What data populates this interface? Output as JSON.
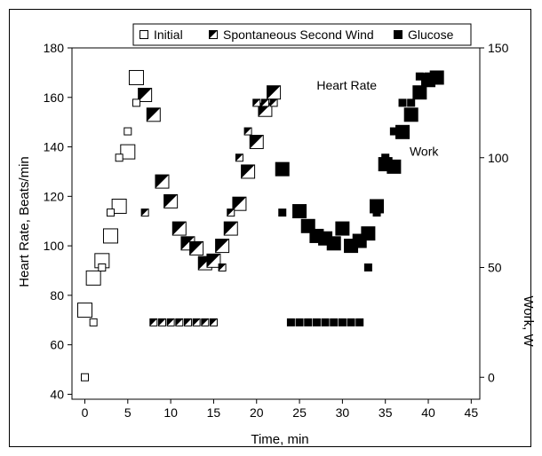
{
  "chart_data": {
    "type": "scatter",
    "xlabel": "Time, min",
    "ylabel_left": "Heart Rate, Beats/min",
    "ylabel_right": "Work, W",
    "x_ticks": [
      0,
      5,
      10,
      15,
      20,
      25,
      30,
      35,
      40,
      45
    ],
    "y_left_ticks": [
      40,
      60,
      80,
      100,
      120,
      140,
      160,
      180
    ],
    "y_right_ticks": [
      0,
      50,
      100,
      150
    ],
    "xlim": [
      -1.5,
      46
    ],
    "ylim_left": [
      38,
      180
    ],
    "ylim_right": [
      -10,
      150
    ],
    "annotations": [
      {
        "text": "Heart Rate",
        "x": 30.5,
        "y": 165
      },
      {
        "text": "Work",
        "x": 39.5,
        "y": 103
      }
    ],
    "legend": {
      "position": "top-center",
      "entries": [
        {
          "label": "Initial",
          "marker": "open"
        },
        {
          "label": "Spontaneous Second Wind",
          "marker": "half"
        },
        {
          "label": "Glucose",
          "marker": "filled"
        }
      ]
    },
    "series": [
      {
        "name": "Initial",
        "marker": "open",
        "heart_rate": [
          [
            0,
            74
          ],
          [
            1,
            87
          ],
          [
            2,
            94
          ],
          [
            3,
            104
          ],
          [
            4,
            116
          ],
          [
            5,
            138
          ],
          [
            6,
            168
          ]
        ],
        "work": [
          [
            0,
            0
          ],
          [
            1,
            25
          ],
          [
            2,
            50
          ],
          [
            3,
            75
          ],
          [
            4,
            100
          ],
          [
            5,
            112
          ],
          [
            6,
            125
          ]
        ]
      },
      {
        "name": "Spontaneous Second Wind",
        "marker": "half",
        "heart_rate": [
          [
            7,
            161
          ],
          [
            8,
            153
          ],
          [
            9,
            126
          ],
          [
            10,
            118
          ],
          [
            11,
            107
          ],
          [
            12,
            101
          ],
          [
            13,
            99
          ],
          [
            14,
            93
          ],
          [
            15,
            94
          ],
          [
            16,
            100
          ],
          [
            17,
            107
          ],
          [
            18,
            117
          ],
          [
            19,
            130
          ],
          [
            20,
            142
          ],
          [
            21,
            155
          ],
          [
            22,
            162
          ]
        ],
        "work": [
          [
            7,
            75
          ],
          [
            8,
            25
          ],
          [
            9,
            25
          ],
          [
            10,
            25
          ],
          [
            11,
            25
          ],
          [
            12,
            25
          ],
          [
            13,
            25
          ],
          [
            14,
            25
          ],
          [
            15,
            25
          ],
          [
            16,
            50
          ],
          [
            17,
            75
          ],
          [
            18,
            100
          ],
          [
            19,
            112
          ],
          [
            20,
            125
          ],
          [
            21,
            125
          ],
          [
            22,
            125
          ]
        ]
      },
      {
        "name": "Glucose",
        "marker": "filled",
        "heart_rate": [
          [
            23,
            131
          ],
          [
            25,
            114
          ],
          [
            26,
            108
          ],
          [
            27,
            104
          ],
          [
            28,
            103
          ],
          [
            29,
            101
          ],
          [
            30,
            107
          ],
          [
            31,
            100
          ],
          [
            32,
            102
          ],
          [
            33,
            105
          ],
          [
            34,
            116
          ],
          [
            35,
            133
          ],
          [
            36,
            132
          ],
          [
            37,
            146
          ],
          [
            38,
            153
          ],
          [
            39,
            162
          ],
          [
            40,
            167
          ],
          [
            41,
            168
          ]
        ],
        "work": [
          [
            23,
            75
          ],
          [
            24,
            25
          ],
          [
            25,
            25
          ],
          [
            26,
            25
          ],
          [
            27,
            25
          ],
          [
            28,
            25
          ],
          [
            29,
            25
          ],
          [
            30,
            25
          ],
          [
            31,
            25
          ],
          [
            32,
            25
          ],
          [
            33,
            50
          ],
          [
            34,
            75
          ],
          [
            35,
            100
          ],
          [
            36,
            112
          ],
          [
            37,
            125
          ],
          [
            38,
            125
          ],
          [
            39,
            137
          ],
          [
            40,
            137
          ],
          [
            41,
            137
          ]
        ]
      }
    ]
  }
}
